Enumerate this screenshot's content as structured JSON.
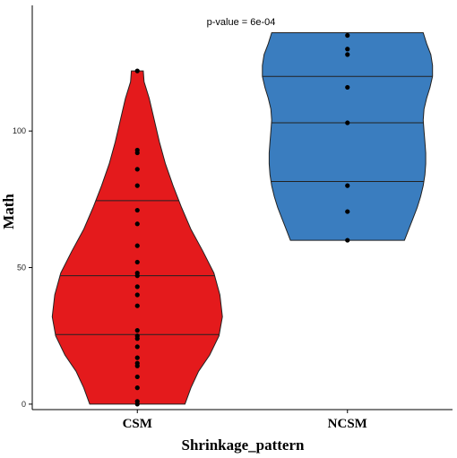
{
  "chart_data": {
    "type": "violin",
    "xlabel": "Shrinkage_pattern",
    "ylabel": "Math",
    "annotation": "p-value = 6e-04",
    "categories": [
      "CSM",
      "NCSM"
    ],
    "yticks": [
      0,
      50,
      100
    ],
    "ylim": [
      -2,
      146
    ],
    "grid": false,
    "legend": "none",
    "series": [
      {
        "name": "CSM",
        "color": "#e41a1c",
        "quantiles": [
          25.5,
          47,
          74.5
        ],
        "range": [
          0,
          122
        ],
        "density_profile": [
          [
            0,
            0.56
          ],
          [
            6,
            0.63
          ],
          [
            12,
            0.72
          ],
          [
            18,
            0.85
          ],
          [
            25,
            0.96
          ],
          [
            32,
            1.0
          ],
          [
            40,
            0.97
          ],
          [
            48,
            0.9
          ],
          [
            56,
            0.77
          ],
          [
            64,
            0.63
          ],
          [
            72,
            0.52
          ],
          [
            80,
            0.42
          ],
          [
            88,
            0.33
          ],
          [
            96,
            0.26
          ],
          [
            104,
            0.2
          ],
          [
            112,
            0.14
          ],
          [
            118,
            0.08
          ],
          [
            122,
            0.07
          ]
        ],
        "points": [
          0,
          1,
          6,
          10,
          14,
          15,
          17,
          21,
          24,
          25,
          27,
          36,
          40,
          43,
          47,
          48,
          52,
          58,
          66,
          71,
          80,
          86,
          92,
          93,
          122
        ]
      },
      {
        "name": "NCSM",
        "color": "#3a7dbf",
        "quantiles": [
          81.5,
          103,
          120
        ],
        "range": [
          60,
          136
        ],
        "density_profile": [
          [
            60,
            0.67
          ],
          [
            64,
            0.72
          ],
          [
            68,
            0.77
          ],
          [
            72,
            0.82
          ],
          [
            76,
            0.86
          ],
          [
            80,
            0.89
          ],
          [
            84,
            0.91
          ],
          [
            88,
            0.92
          ],
          [
            92,
            0.92
          ],
          [
            96,
            0.91
          ],
          [
            100,
            0.9
          ],
          [
            104,
            0.89
          ],
          [
            108,
            0.9
          ],
          [
            112,
            0.93
          ],
          [
            116,
            0.97
          ],
          [
            120,
            1.0
          ],
          [
            124,
            1.0
          ],
          [
            128,
            0.98
          ],
          [
            132,
            0.93
          ],
          [
            136,
            0.89
          ]
        ],
        "points": [
          60,
          70.5,
          80,
          103,
          116,
          128,
          130,
          135
        ]
      }
    ]
  }
}
